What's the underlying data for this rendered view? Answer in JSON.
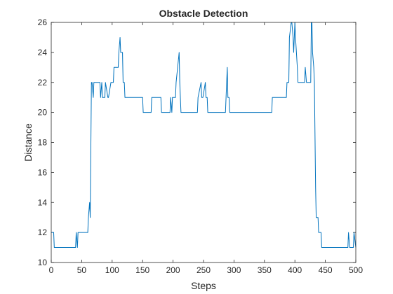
{
  "chart_data": {
    "type": "line",
    "title": "Obstacle Detection",
    "xlabel": "Steps",
    "ylabel": "Distance",
    "xlim": [
      0,
      500
    ],
    "ylim": [
      10,
      26
    ],
    "xticks": [
      0,
      50,
      100,
      150,
      200,
      250,
      300,
      350,
      400,
      450,
      500
    ],
    "yticks": [
      10,
      12,
      14,
      16,
      18,
      20,
      22,
      24,
      26
    ],
    "grid": false,
    "legend": "none",
    "line_color": "#0072BD",
    "series": [
      {
        "x": [
          0,
          4,
          5,
          40,
          41,
          43,
          44,
          60,
          61,
          63,
          64,
          66,
          67,
          69,
          70,
          80,
          81,
          83,
          84,
          88,
          89,
          93,
          94,
          98,
          99,
          102,
          103,
          110,
          111,
          113,
          114,
          117,
          118,
          120,
          121,
          123,
          124,
          126,
          127,
          150,
          151,
          164,
          165,
          170,
          171,
          174,
          175,
          180,
          181,
          186,
          187,
          195,
          196,
          198,
          199,
          204,
          205,
          210,
          211,
          213,
          214,
          218,
          219,
          240,
          241,
          246,
          247,
          248,
          249,
          253,
          254,
          256,
          257,
          262,
          263,
          286,
          287,
          289,
          290,
          292,
          293,
          296,
          297,
          362,
          363,
          366,
          367,
          386,
          387,
          390,
          391,
          394,
          395,
          397,
          398,
          400,
          401,
          404,
          405,
          416,
          417,
          419,
          420,
          426,
          427,
          428,
          429,
          431,
          432,
          434,
          435,
          438,
          439,
          443,
          444,
          460,
          461,
          470,
          471,
          487,
          488,
          490,
          491,
          496,
          497,
          500
        ],
        "y": [
          12,
          12,
          11,
          11,
          12,
          11,
          12,
          12,
          13,
          14,
          13,
          22,
          22,
          21,
          22,
          22,
          21,
          22,
          21,
          21,
          22,
          21,
          21,
          22,
          22,
          22,
          23,
          23,
          24,
          25,
          24,
          24,
          22,
          22,
          21,
          21,
          21,
          21,
          21,
          21,
          20,
          20,
          21,
          21,
          21,
          21,
          21,
          21,
          20,
          20,
          20,
          20,
          21,
          20,
          21,
          21,
          22,
          24,
          22,
          20,
          20,
          20,
          20,
          20,
          21,
          22,
          21,
          21,
          21,
          22,
          21,
          21,
          20,
          20,
          20,
          20,
          21,
          23,
          21,
          21,
          20,
          20,
          20,
          20,
          21,
          21,
          21,
          21,
          22,
          22,
          25,
          26,
          26,
          25,
          24,
          26,
          25,
          23,
          22,
          22,
          23,
          22,
          22,
          22,
          26,
          26,
          24,
          23,
          22,
          15,
          13,
          13,
          12,
          12,
          11,
          11,
          11,
          11,
          11,
          11,
          12,
          11,
          11,
          11,
          12,
          11
        ]
      }
    ]
  }
}
